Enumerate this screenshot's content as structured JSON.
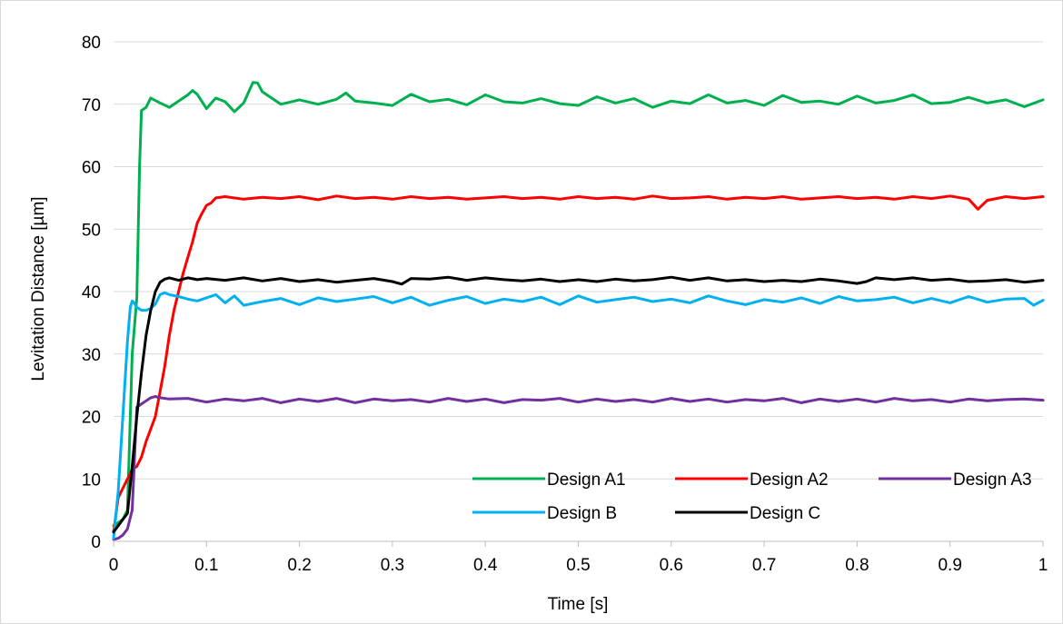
{
  "chart_data": {
    "type": "line",
    "title": "",
    "xlabel": "Time [s]",
    "ylabel": "Levitation Distance [µm]",
    "xlim": [
      0,
      1
    ],
    "ylim": [
      0,
      80
    ],
    "xticks": [
      0,
      0.1,
      0.2,
      0.3,
      0.4,
      0.5,
      0.6,
      0.7,
      0.8,
      0.9,
      1
    ],
    "xtick_labels": [
      "0",
      "0.1",
      "0.2",
      "0.3",
      "0.4",
      "0.5",
      "0.6",
      "0.7",
      "0.8",
      "0.9",
      "1"
    ],
    "yticks": [
      0,
      10,
      20,
      30,
      40,
      50,
      60,
      70,
      80
    ],
    "ytick_labels": [
      "0",
      "10",
      "20",
      "30",
      "40",
      "50",
      "60",
      "70",
      "80"
    ],
    "grid": "horizontal",
    "legend_position": "bottom-right",
    "series": [
      {
        "name": "Design A1",
        "color": "#00b050",
        "x": [
          0,
          0.005,
          0.01,
          0.015,
          0.02,
          0.025,
          0.028,
          0.03,
          0.035,
          0.04,
          0.05,
          0.06,
          0.07,
          0.08,
          0.085,
          0.09,
          0.1,
          0.11,
          0.12,
          0.13,
          0.14,
          0.15,
          0.155,
          0.16,
          0.17,
          0.18,
          0.2,
          0.22,
          0.24,
          0.25,
          0.26,
          0.28,
          0.3,
          0.32,
          0.34,
          0.36,
          0.38,
          0.4,
          0.42,
          0.44,
          0.46,
          0.48,
          0.5,
          0.52,
          0.54,
          0.56,
          0.58,
          0.6,
          0.62,
          0.64,
          0.66,
          0.68,
          0.7,
          0.72,
          0.74,
          0.76,
          0.78,
          0.8,
          0.82,
          0.84,
          0.86,
          0.88,
          0.9,
          0.92,
          0.94,
          0.96,
          0.98,
          1.0
        ],
        "y": [
          2.5,
          3,
          3.5,
          5,
          30,
          39,
          60,
          69,
          69.5,
          71,
          70.2,
          69.5,
          70.5,
          71.5,
          72.2,
          71.6,
          69.3,
          71,
          70.4,
          68.8,
          70.2,
          73.5,
          73.4,
          72,
          71,
          70,
          70.7,
          70,
          70.8,
          71.8,
          70.5,
          70.2,
          69.8,
          71.6,
          70.4,
          70.8,
          69.9,
          71.5,
          70.4,
          70.2,
          70.9,
          70.1,
          69.8,
          71.2,
          70.2,
          70.9,
          69.5,
          70.5,
          70.1,
          71.5,
          70.2,
          70.6,
          69.8,
          71.4,
          70.3,
          70.5,
          70,
          71.3,
          70.2,
          70.6,
          71.5,
          70.1,
          70.3,
          71.1,
          70.2,
          70.7,
          69.6,
          70.7
        ]
      },
      {
        "name": "Design A2",
        "color": "#ff0000",
        "x": [
          0,
          0.005,
          0.01,
          0.015,
          0.02,
          0.025,
          0.03,
          0.035,
          0.04,
          0.045,
          0.05,
          0.055,
          0.06,
          0.065,
          0.07,
          0.075,
          0.08,
          0.085,
          0.09,
          0.095,
          0.1,
          0.105,
          0.11,
          0.12,
          0.14,
          0.16,
          0.18,
          0.2,
          0.22,
          0.24,
          0.26,
          0.28,
          0.3,
          0.32,
          0.34,
          0.36,
          0.38,
          0.4,
          0.42,
          0.44,
          0.46,
          0.48,
          0.5,
          0.52,
          0.54,
          0.56,
          0.58,
          0.6,
          0.62,
          0.64,
          0.66,
          0.68,
          0.7,
          0.72,
          0.74,
          0.76,
          0.78,
          0.8,
          0.82,
          0.84,
          0.86,
          0.88,
          0.9,
          0.92,
          0.93,
          0.94,
          0.96,
          0.98,
          1.0
        ],
        "y": [
          1.5,
          7,
          8.5,
          10,
          11.5,
          12,
          13.5,
          16,
          18,
          20,
          24,
          28,
          33,
          37,
          40,
          43,
          45.5,
          48,
          51,
          52.5,
          53.8,
          54.2,
          55,
          55.2,
          54.8,
          55.1,
          54.9,
          55.2,
          54.7,
          55.3,
          54.9,
          55.1,
          54.8,
          55.2,
          54.9,
          55.1,
          54.8,
          55,
          55.2,
          54.9,
          55.1,
          54.8,
          55.2,
          54.9,
          55.1,
          54.8,
          55.3,
          54.9,
          55,
          55.2,
          54.8,
          55.1,
          54.9,
          55.2,
          54.8,
          55,
          55.2,
          54.9,
          55.1,
          54.8,
          55.2,
          54.9,
          55.3,
          54.8,
          53.2,
          54.6,
          55.2,
          54.9,
          55.2
        ]
      },
      {
        "name": "Design A3",
        "color": "#7030a0",
        "x": [
          0,
          0.005,
          0.01,
          0.015,
          0.02,
          0.025,
          0.03,
          0.035,
          0.04,
          0.045,
          0.05,
          0.06,
          0.08,
          0.1,
          0.12,
          0.14,
          0.16,
          0.18,
          0.2,
          0.22,
          0.24,
          0.26,
          0.28,
          0.3,
          0.32,
          0.34,
          0.36,
          0.38,
          0.4,
          0.42,
          0.44,
          0.46,
          0.48,
          0.5,
          0.52,
          0.54,
          0.56,
          0.58,
          0.6,
          0.62,
          0.64,
          0.66,
          0.68,
          0.7,
          0.72,
          0.74,
          0.76,
          0.78,
          0.8,
          0.82,
          0.84,
          0.86,
          0.88,
          0.9,
          0.92,
          0.94,
          0.96,
          0.98,
          1.0
        ],
        "y": [
          0.3,
          0.5,
          1,
          2,
          5,
          21.5,
          22,
          22.5,
          23,
          23.2,
          23,
          22.8,
          22.9,
          22.3,
          22.8,
          22.5,
          22.9,
          22.2,
          22.8,
          22.4,
          22.9,
          22.2,
          22.8,
          22.5,
          22.7,
          22.3,
          22.9,
          22.4,
          22.8,
          22.2,
          22.7,
          22.6,
          22.9,
          22.3,
          22.8,
          22.4,
          22.7,
          22.3,
          22.9,
          22.4,
          22.8,
          22.3,
          22.7,
          22.5,
          22.9,
          22.2,
          22.8,
          22.4,
          22.8,
          22.3,
          22.9,
          22.5,
          22.7,
          22.3,
          22.8,
          22.5,
          22.7,
          22.8,
          22.6
        ]
      },
      {
        "name": "Design B",
        "color": "#00b0f0",
        "x": [
          0,
          0.005,
          0.01,
          0.015,
          0.018,
          0.02,
          0.022,
          0.025,
          0.03,
          0.035,
          0.04,
          0.045,
          0.05,
          0.055,
          0.06,
          0.07,
          0.08,
          0.09,
          0.1,
          0.11,
          0.12,
          0.13,
          0.14,
          0.16,
          0.18,
          0.2,
          0.22,
          0.24,
          0.26,
          0.28,
          0.3,
          0.32,
          0.34,
          0.36,
          0.38,
          0.4,
          0.42,
          0.44,
          0.46,
          0.48,
          0.5,
          0.52,
          0.54,
          0.56,
          0.58,
          0.6,
          0.62,
          0.64,
          0.66,
          0.68,
          0.7,
          0.72,
          0.74,
          0.76,
          0.78,
          0.8,
          0.82,
          0.84,
          0.86,
          0.88,
          0.9,
          0.92,
          0.94,
          0.96,
          0.98,
          0.99,
          1.0
        ],
        "y": [
          0.5,
          8,
          20,
          32,
          37.5,
          38.5,
          38.2,
          37.5,
          37,
          37,
          37.3,
          38,
          39.5,
          39.8,
          39.5,
          39.2,
          38.8,
          38.5,
          39,
          39.5,
          38.2,
          39.3,
          37.8,
          38.4,
          38.9,
          37.9,
          39,
          38.4,
          38.8,
          39.2,
          38.2,
          39.1,
          37.8,
          38.6,
          39.2,
          38.1,
          38.8,
          38.4,
          39.1,
          37.9,
          39.3,
          38.3,
          38.7,
          39.1,
          38.4,
          38.8,
          38.2,
          39.3,
          38.5,
          37.9,
          38.7,
          38.3,
          39,
          38.1,
          39.2,
          38.5,
          38.7,
          39.1,
          38.2,
          38.9,
          38.2,
          39.2,
          38.3,
          38.8,
          38.9,
          37.8,
          38.6
        ]
      },
      {
        "name": "Design C",
        "color": "#000000",
        "x": [
          0,
          0.005,
          0.01,
          0.015,
          0.02,
          0.025,
          0.03,
          0.035,
          0.04,
          0.045,
          0.05,
          0.055,
          0.06,
          0.07,
          0.08,
          0.09,
          0.1,
          0.12,
          0.14,
          0.16,
          0.18,
          0.2,
          0.22,
          0.24,
          0.26,
          0.28,
          0.3,
          0.31,
          0.32,
          0.34,
          0.36,
          0.38,
          0.4,
          0.42,
          0.44,
          0.46,
          0.48,
          0.5,
          0.52,
          0.54,
          0.56,
          0.58,
          0.6,
          0.62,
          0.64,
          0.66,
          0.68,
          0.7,
          0.72,
          0.74,
          0.76,
          0.78,
          0.8,
          0.81,
          0.82,
          0.84,
          0.86,
          0.88,
          0.9,
          0.92,
          0.94,
          0.96,
          0.98,
          1.0
        ],
        "y": [
          1.5,
          2.5,
          3.5,
          4.5,
          12,
          20,
          27,
          33,
          37,
          40,
          41.5,
          42,
          42.2,
          41.8,
          42.2,
          41.9,
          42.1,
          41.8,
          42.2,
          41.7,
          42.1,
          41.6,
          41.9,
          41.5,
          41.8,
          42.1,
          41.6,
          41.2,
          42.1,
          42,
          42.3,
          41.8,
          42.2,
          41.9,
          41.7,
          42,
          41.6,
          41.9,
          41.6,
          42,
          41.7,
          41.9,
          42.3,
          41.8,
          42.2,
          41.7,
          41.9,
          41.6,
          41.8,
          41.6,
          42,
          41.7,
          41.3,
          41.6,
          42.2,
          41.9,
          42.2,
          41.8,
          42,
          41.6,
          41.7,
          41.9,
          41.5,
          41.8
        ]
      }
    ]
  }
}
